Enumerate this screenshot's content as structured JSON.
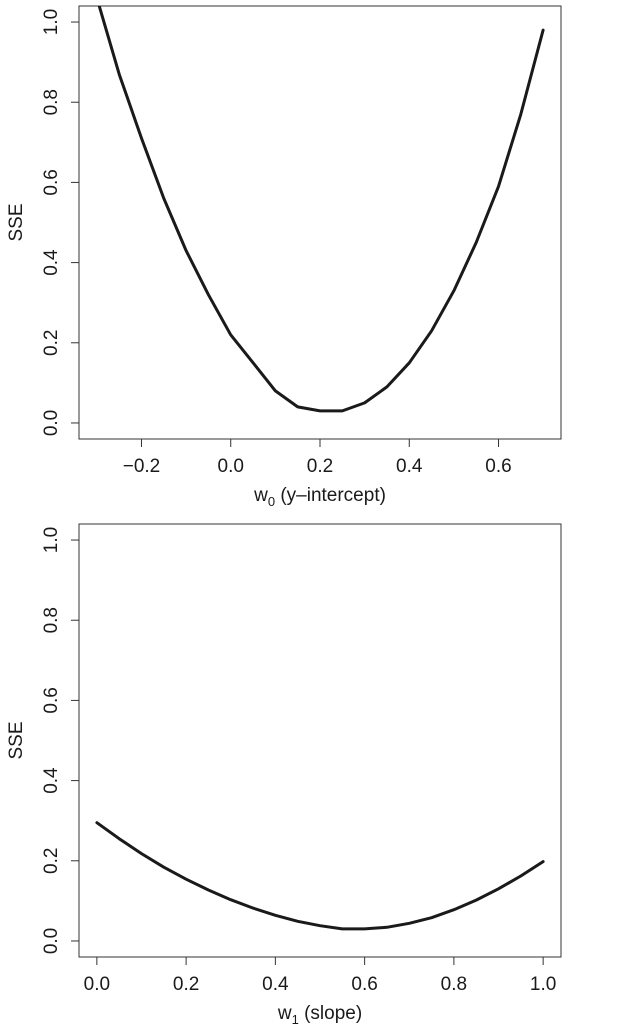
{
  "chart_data": [
    {
      "type": "line",
      "title": "",
      "xlabel": "w",
      "xlabel_sub": "0",
      "xlabel_suffix": " (y–intercept)",
      "ylabel": "SSE",
      "xlim": [
        -0.34,
        0.74
      ],
      "ylim": [
        -0.04,
        1.04
      ],
      "xticks": [
        -0.2,
        0.0,
        0.2,
        0.4,
        0.6
      ],
      "xtick_labels": [
        "−0.2",
        "0.0",
        "0.2",
        "0.4",
        "0.6"
      ],
      "yticks": [
        0.0,
        0.2,
        0.4,
        0.6,
        0.8,
        1.0
      ],
      "ytick_labels": [
        "0.0",
        "0.2",
        "0.4",
        "0.6",
        "0.8",
        "1.0"
      ],
      "grid": false,
      "series": [
        {
          "x": [
            -0.3,
            -0.25,
            -0.2,
            -0.15,
            -0.1,
            -0.05,
            0.0,
            0.05,
            0.1,
            0.15,
            0.2,
            0.21,
            0.25,
            0.3,
            0.35,
            0.4,
            0.45,
            0.5,
            0.55,
            0.6,
            0.65,
            0.7
          ],
          "y": [
            1.06,
            0.87,
            0.71,
            0.56,
            0.43,
            0.32,
            0.22,
            0.15,
            0.08,
            0.04,
            0.03,
            0.03,
            0.03,
            0.05,
            0.09,
            0.15,
            0.23,
            0.33,
            0.45,
            0.59,
            0.77,
            0.98
          ]
        }
      ]
    },
    {
      "type": "line",
      "title": "",
      "xlabel": "w",
      "xlabel_sub": "1",
      "xlabel_suffix": " (slope)",
      "ylabel": "SSE",
      "xlim": [
        -0.04,
        1.04
      ],
      "ylim": [
        -0.04,
        1.04
      ],
      "xticks": [
        0.0,
        0.2,
        0.4,
        0.6,
        0.8,
        1.0
      ],
      "xtick_labels": [
        "0.0",
        "0.2",
        "0.4",
        "0.6",
        "0.8",
        "1.0"
      ],
      "yticks": [
        0.0,
        0.2,
        0.4,
        0.6,
        0.8,
        1.0
      ],
      "ytick_labels": [
        "0.0",
        "0.2",
        "0.4",
        "0.6",
        "0.8",
        "1.0"
      ],
      "grid": false,
      "series": [
        {
          "x": [
            0.0,
            0.05,
            0.1,
            0.15,
            0.2,
            0.25,
            0.3,
            0.35,
            0.4,
            0.45,
            0.5,
            0.55,
            0.6,
            0.65,
            0.7,
            0.75,
            0.8,
            0.85,
            0.9,
            0.95,
            1.0
          ],
          "y": [
            0.295,
            0.255,
            0.218,
            0.184,
            0.154,
            0.127,
            0.103,
            0.082,
            0.064,
            0.049,
            0.038,
            0.03,
            0.03,
            0.034,
            0.044,
            0.058,
            0.078,
            0.102,
            0.13,
            0.162,
            0.198
          ]
        }
      ]
    }
  ]
}
